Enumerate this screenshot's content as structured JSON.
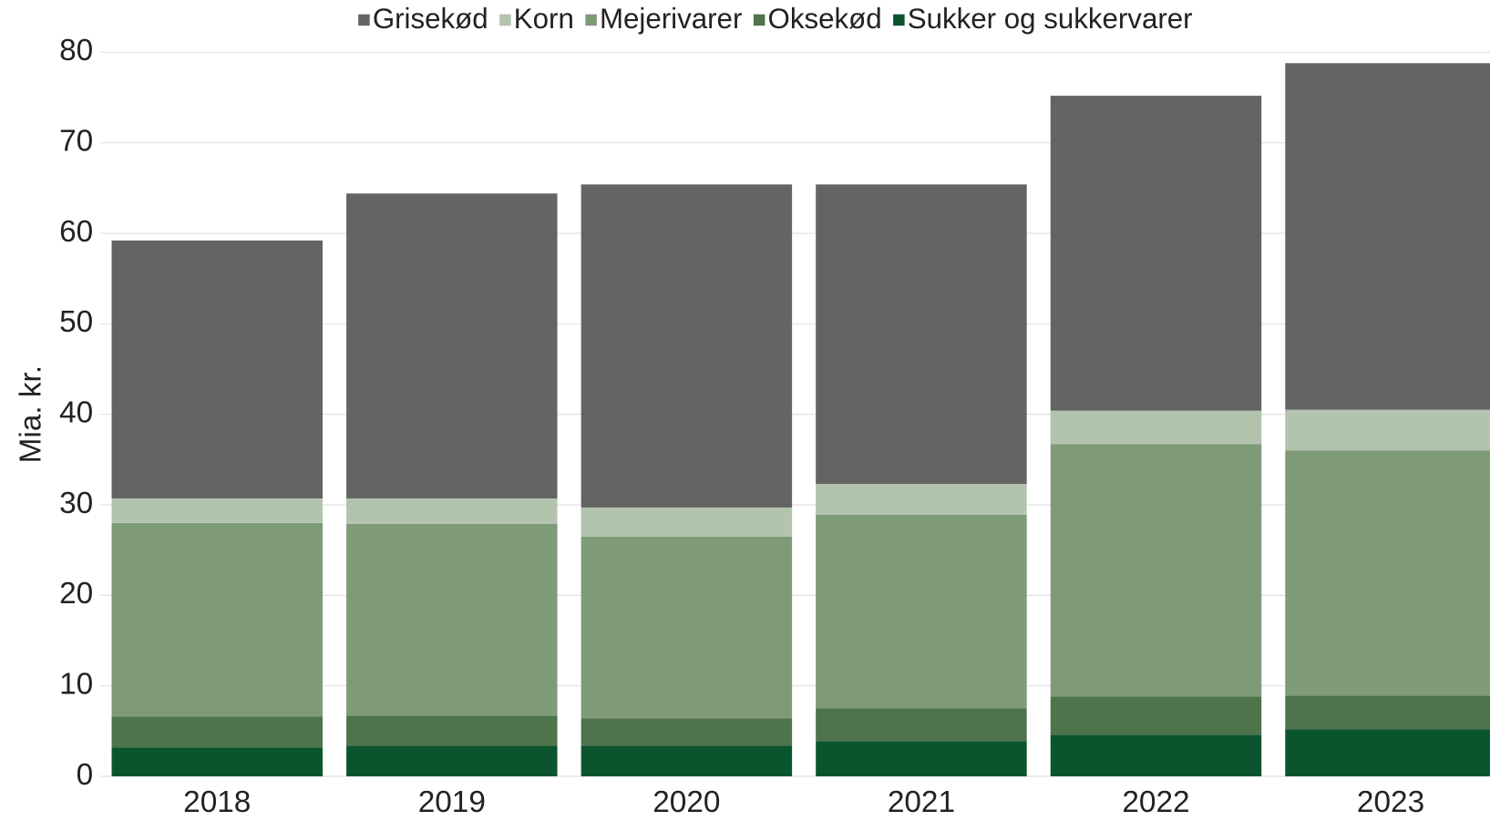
{
  "chart_data": {
    "type": "stacked_bar",
    "y_label": "Mia. kr.",
    "categories": [
      "2018",
      "2019",
      "2020",
      "2021",
      "2022",
      "2023"
    ],
    "series": [
      {
        "name": "Grisekød",
        "color": "#646464",
        "values": [
          28.5,
          33.7,
          35.7,
          33.1,
          34.8,
          38.3
        ]
      },
      {
        "name": "Korn",
        "color": "#b3c4ae",
        "values": [
          2.7,
          2.8,
          3.2,
          3.4,
          3.7,
          4.5
        ]
      },
      {
        "name": "Mejerivarer",
        "color": "#7f9a77",
        "values": [
          21.4,
          21.2,
          20.1,
          21.4,
          27.9,
          27.1
        ]
      },
      {
        "name": "Oksekød",
        "color": "#4d744b",
        "values": [
          3.4,
          3.3,
          3.0,
          3.6,
          4.2,
          3.7
        ]
      },
      {
        "name": "Sukker og sukkervarer",
        "color": "#0b552e",
        "values": [
          3.2,
          3.4,
          3.4,
          3.9,
          4.6,
          5.2
        ]
      }
    ],
    "ylim": [
      0,
      80
    ],
    "yticks": [
      0,
      10,
      20,
      30,
      40,
      50,
      60,
      70,
      80
    ],
    "grid": true,
    "legend": "top"
  }
}
